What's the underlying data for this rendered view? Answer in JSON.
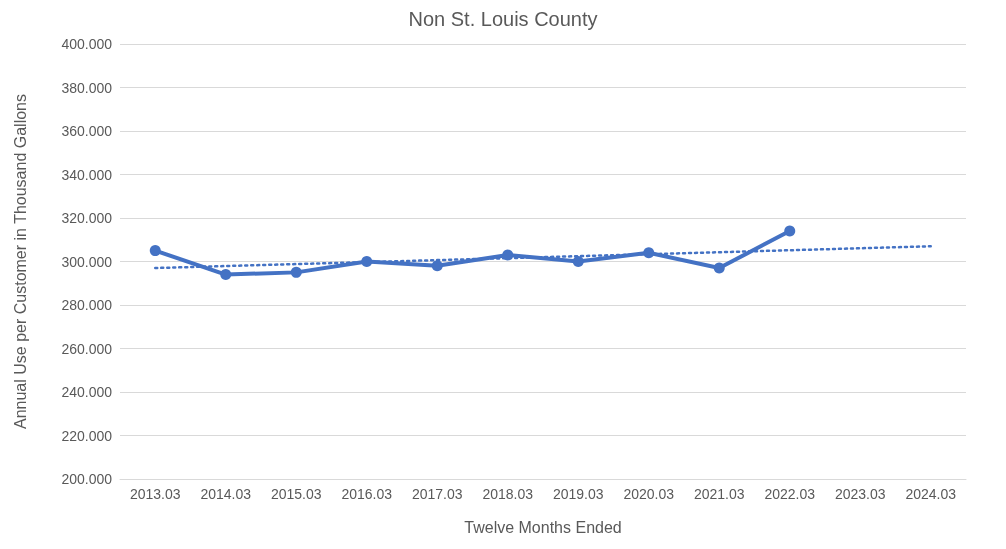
{
  "chart_data": {
    "type": "line",
    "title": "Non St. Louis County",
    "xlabel": "Twelve Months Ended",
    "ylabel": "Annual Use per Customer in Thousand Gallons",
    "categories": [
      "2013.03",
      "2014.03",
      "2015.03",
      "2016.03",
      "2017.03",
      "2018.03",
      "2019.03",
      "2020.03",
      "2021.03",
      "2022.03",
      "2023.03",
      "2024.03"
    ],
    "series": [
      {
        "color": "#4472c4",
        "marker": "circle",
        "line_style": "solid",
        "values": [
          305,
          294,
          295,
          300,
          298,
          303,
          300,
          304,
          297,
          314,
          null,
          null
        ]
      },
      {
        "type": "line",
        "color": "#4472c4",
        "marker": "none",
        "line_style": "dotted",
        "values": [
          297,
          null,
          null,
          null,
          null,
          null,
          null,
          null,
          null,
          null,
          null,
          307
        ]
      }
    ],
    "ylim": [
      200,
      400
    ],
    "yticks": [
      {
        "value": 200,
        "label": "200.000"
      },
      {
        "value": 220,
        "label": "220.000"
      },
      {
        "value": 240,
        "label": "240.000"
      },
      {
        "value": 260,
        "label": "260.000"
      },
      {
        "value": 280,
        "label": "280.000"
      },
      {
        "value": 300,
        "label": "300.000"
      },
      {
        "value": 320,
        "label": "320.000"
      },
      {
        "value": 340,
        "label": "340.000"
      },
      {
        "value": 360,
        "label": "360.000"
      },
      {
        "value": 380,
        "label": "380.000"
      },
      {
        "value": 400,
        "label": "400.000"
      }
    ],
    "grid": "y"
  }
}
